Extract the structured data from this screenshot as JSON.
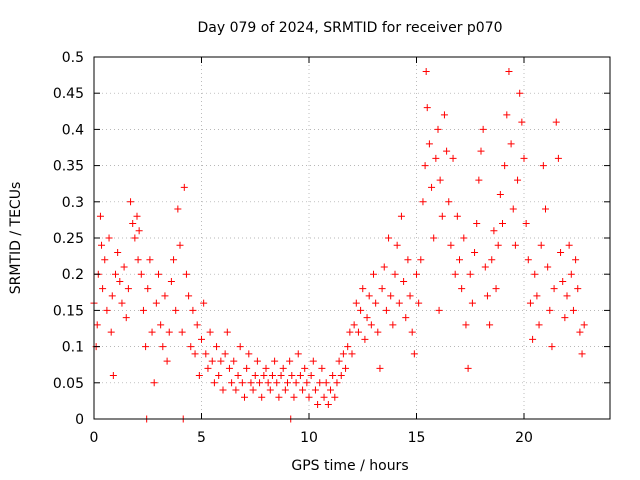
{
  "chart_data": {
    "type": "scatter",
    "title": "Day 079 of 2024, SRMTID for receiver p070",
    "xlabel": "GPS time / hours",
    "ylabel": "SRMTID / TECUs",
    "xlim": [
      0,
      24
    ],
    "ylim": [
      0,
      0.5
    ],
    "x_ticks": [
      0,
      5,
      10,
      15,
      20
    ],
    "y_ticks": [
      0,
      0.05,
      0.1,
      0.15,
      0.2,
      0.25,
      0.3,
      0.35,
      0.4,
      0.45,
      0.5
    ],
    "x_tick_labels": [
      "0",
      "5",
      "10",
      "15",
      "20"
    ],
    "y_tick_labels": [
      "0",
      "0.05",
      "0.1",
      "0.15",
      "0.2",
      "0.25",
      "0.3",
      "0.35",
      "0.4",
      "0.45",
      "0.5"
    ],
    "grid": true,
    "marker": "+",
    "color": "#ff0000",
    "series": [
      {
        "name": "SRMTID",
        "points": [
          [
            0.0,
            0.16
          ],
          [
            0.1,
            0.1
          ],
          [
            0.15,
            0.13
          ],
          [
            0.2,
            0.2
          ],
          [
            0.3,
            0.28
          ],
          [
            0.35,
            0.24
          ],
          [
            0.4,
            0.18
          ],
          [
            0.5,
            0.22
          ],
          [
            0.6,
            0.15
          ],
          [
            0.7,
            0.25
          ],
          [
            0.8,
            0.12
          ],
          [
            0.85,
            0.17
          ],
          [
            0.9,
            0.06
          ],
          [
            1.0,
            0.2
          ],
          [
            1.1,
            0.23
          ],
          [
            1.2,
            0.19
          ],
          [
            1.3,
            0.16
          ],
          [
            1.4,
            0.21
          ],
          [
            1.5,
            0.14
          ],
          [
            1.6,
            0.18
          ],
          [
            1.7,
            0.3
          ],
          [
            1.8,
            0.27
          ],
          [
            1.9,
            0.25
          ],
          [
            2.0,
            0.28
          ],
          [
            2.05,
            0.22
          ],
          [
            2.1,
            0.26
          ],
          [
            2.2,
            0.2
          ],
          [
            2.3,
            0.15
          ],
          [
            2.4,
            0.1
          ],
          [
            2.45,
            0.0
          ],
          [
            2.5,
            0.18
          ],
          [
            2.6,
            0.22
          ],
          [
            2.7,
            0.12
          ],
          [
            2.8,
            0.05
          ],
          [
            2.9,
            0.16
          ],
          [
            3.0,
            0.2
          ],
          [
            3.1,
            0.13
          ],
          [
            3.2,
            0.1
          ],
          [
            3.3,
            0.17
          ],
          [
            3.4,
            0.08
          ],
          [
            3.5,
            0.12
          ],
          [
            3.6,
            0.19
          ],
          [
            3.7,
            0.22
          ],
          [
            3.8,
            0.15
          ],
          [
            3.9,
            0.29
          ],
          [
            4.0,
            0.24
          ],
          [
            4.1,
            0.12
          ],
          [
            4.15,
            0.0
          ],
          [
            4.2,
            0.32
          ],
          [
            4.3,
            0.2
          ],
          [
            4.4,
            0.17
          ],
          [
            4.5,
            0.1
          ],
          [
            4.6,
            0.15
          ],
          [
            4.7,
            0.09
          ],
          [
            4.8,
            0.13
          ],
          [
            4.9,
            0.06
          ],
          [
            5.0,
            0.11
          ],
          [
            5.1,
            0.16
          ],
          [
            5.2,
            0.09
          ],
          [
            5.3,
            0.07
          ],
          [
            5.4,
            0.12
          ],
          [
            5.5,
            0.08
          ],
          [
            5.6,
            0.05
          ],
          [
            5.7,
            0.1
          ],
          [
            5.8,
            0.06
          ],
          [
            5.9,
            0.08
          ],
          [
            6.0,
            0.04
          ],
          [
            6.1,
            0.09
          ],
          [
            6.2,
            0.12
          ],
          [
            6.3,
            0.07
          ],
          [
            6.4,
            0.05
          ],
          [
            6.5,
            0.08
          ],
          [
            6.6,
            0.04
          ],
          [
            6.7,
            0.06
          ],
          [
            6.8,
            0.1
          ],
          [
            6.9,
            0.05
          ],
          [
            7.0,
            0.03
          ],
          [
            7.1,
            0.07
          ],
          [
            7.2,
            0.09
          ],
          [
            7.3,
            0.05
          ],
          [
            7.4,
            0.04
          ],
          [
            7.5,
            0.06
          ],
          [
            7.6,
            0.08
          ],
          [
            7.7,
            0.05
          ],
          [
            7.8,
            0.03
          ],
          [
            7.9,
            0.06
          ],
          [
            8.0,
            0.07
          ],
          [
            8.1,
            0.05
          ],
          [
            8.2,
            0.04
          ],
          [
            8.3,
            0.06
          ],
          [
            8.4,
            0.08
          ],
          [
            8.5,
            0.05
          ],
          [
            8.6,
            0.03
          ],
          [
            8.7,
            0.06
          ],
          [
            8.8,
            0.07
          ],
          [
            8.9,
            0.04
          ],
          [
            9.0,
            0.05
          ],
          [
            9.1,
            0.08
          ],
          [
            9.15,
            0.0
          ],
          [
            9.2,
            0.06
          ],
          [
            9.3,
            0.03
          ],
          [
            9.4,
            0.05
          ],
          [
            9.5,
            0.09
          ],
          [
            9.6,
            0.06
          ],
          [
            9.7,
            0.04
          ],
          [
            9.8,
            0.07
          ],
          [
            9.9,
            0.05
          ],
          [
            10.0,
            0.03
          ],
          [
            10.1,
            0.06
          ],
          [
            10.2,
            0.08
          ],
          [
            10.3,
            0.04
          ],
          [
            10.4,
            0.02
          ],
          [
            10.5,
            0.05
          ],
          [
            10.6,
            0.07
          ],
          [
            10.7,
            0.03
          ],
          [
            10.8,
            0.05
          ],
          [
            10.9,
            0.02
          ],
          [
            11.0,
            0.04
          ],
          [
            11.1,
            0.06
          ],
          [
            11.2,
            0.03
          ],
          [
            11.3,
            0.05
          ],
          [
            11.4,
            0.08
          ],
          [
            11.5,
            0.06
          ],
          [
            11.6,
            0.09
          ],
          [
            11.7,
            0.07
          ],
          [
            11.8,
            0.1
          ],
          [
            11.9,
            0.12
          ],
          [
            12.0,
            0.09
          ],
          [
            12.1,
            0.13
          ],
          [
            12.2,
            0.16
          ],
          [
            12.3,
            0.12
          ],
          [
            12.4,
            0.15
          ],
          [
            12.5,
            0.18
          ],
          [
            12.6,
            0.11
          ],
          [
            12.7,
            0.14
          ],
          [
            12.8,
            0.17
          ],
          [
            12.9,
            0.13
          ],
          [
            13.0,
            0.2
          ],
          [
            13.1,
            0.16
          ],
          [
            13.2,
            0.12
          ],
          [
            13.3,
            0.07
          ],
          [
            13.4,
            0.18
          ],
          [
            13.5,
            0.21
          ],
          [
            13.6,
            0.15
          ],
          [
            13.7,
            0.25
          ],
          [
            13.8,
            0.17
          ],
          [
            13.9,
            0.13
          ],
          [
            14.0,
            0.2
          ],
          [
            14.1,
            0.24
          ],
          [
            14.2,
            0.16
          ],
          [
            14.3,
            0.28
          ],
          [
            14.4,
            0.19
          ],
          [
            14.5,
            0.14
          ],
          [
            14.6,
            0.22
          ],
          [
            14.7,
            0.17
          ],
          [
            14.8,
            0.12
          ],
          [
            14.9,
            0.09
          ],
          [
            15.0,
            0.2
          ],
          [
            15.1,
            0.16
          ],
          [
            15.2,
            0.22
          ],
          [
            15.3,
            0.3
          ],
          [
            15.4,
            0.35
          ],
          [
            15.45,
            0.48
          ],
          [
            15.5,
            0.43
          ],
          [
            15.6,
            0.38
          ],
          [
            15.7,
            0.32
          ],
          [
            15.8,
            0.25
          ],
          [
            15.9,
            0.36
          ],
          [
            16.0,
            0.4
          ],
          [
            16.05,
            0.15
          ],
          [
            16.1,
            0.33
          ],
          [
            16.2,
            0.28
          ],
          [
            16.3,
            0.42
          ],
          [
            16.4,
            0.37
          ],
          [
            16.5,
            0.3
          ],
          [
            16.6,
            0.24
          ],
          [
            16.7,
            0.36
          ],
          [
            16.8,
            0.2
          ],
          [
            16.9,
            0.28
          ],
          [
            17.0,
            0.22
          ],
          [
            17.1,
            0.18
          ],
          [
            17.2,
            0.25
          ],
          [
            17.3,
            0.13
          ],
          [
            17.4,
            0.07
          ],
          [
            17.5,
            0.2
          ],
          [
            17.6,
            0.16
          ],
          [
            17.7,
            0.23
          ],
          [
            17.8,
            0.27
          ],
          [
            17.9,
            0.33
          ],
          [
            18.0,
            0.37
          ],
          [
            18.1,
            0.4
          ],
          [
            18.2,
            0.21
          ],
          [
            18.3,
            0.17
          ],
          [
            18.4,
            0.13
          ],
          [
            18.5,
            0.22
          ],
          [
            18.6,
            0.26
          ],
          [
            18.7,
            0.18
          ],
          [
            18.8,
            0.24
          ],
          [
            18.9,
            0.31
          ],
          [
            19.0,
            0.27
          ],
          [
            19.1,
            0.35
          ],
          [
            19.2,
            0.42
          ],
          [
            19.3,
            0.48
          ],
          [
            19.4,
            0.38
          ],
          [
            19.5,
            0.29
          ],
          [
            19.6,
            0.24
          ],
          [
            19.7,
            0.33
          ],
          [
            19.8,
            0.45
          ],
          [
            19.9,
            0.41
          ],
          [
            20.0,
            0.36
          ],
          [
            20.1,
            0.27
          ],
          [
            20.2,
            0.22
          ],
          [
            20.3,
            0.16
          ],
          [
            20.4,
            0.11
          ],
          [
            20.5,
            0.2
          ],
          [
            20.6,
            0.17
          ],
          [
            20.7,
            0.13
          ],
          [
            20.8,
            0.24
          ],
          [
            20.9,
            0.35
          ],
          [
            21.0,
            0.29
          ],
          [
            21.1,
            0.21
          ],
          [
            21.2,
            0.15
          ],
          [
            21.3,
            0.1
          ],
          [
            21.4,
            0.18
          ],
          [
            21.5,
            0.41
          ],
          [
            21.6,
            0.36
          ],
          [
            21.7,
            0.23
          ],
          [
            21.8,
            0.19
          ],
          [
            21.9,
            0.14
          ],
          [
            22.0,
            0.17
          ],
          [
            22.1,
            0.24
          ],
          [
            22.2,
            0.2
          ],
          [
            22.3,
            0.15
          ],
          [
            22.4,
            0.22
          ],
          [
            22.5,
            0.18
          ],
          [
            22.6,
            0.12
          ],
          [
            22.7,
            0.09
          ],
          [
            22.8,
            0.13
          ]
        ]
      }
    ]
  }
}
